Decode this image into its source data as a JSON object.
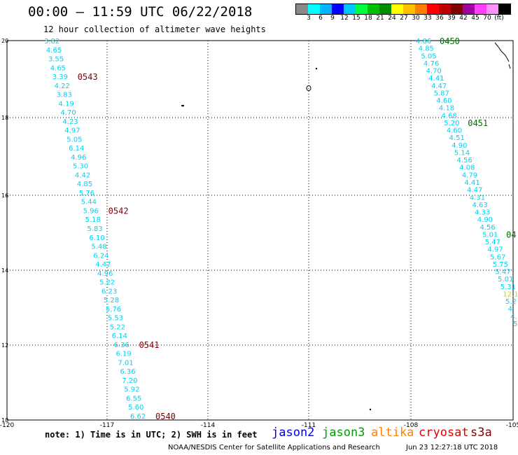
{
  "title": "00:00 – 11:59 UTC 06/22/2018",
  "subtitle": "12 hour collection of altimeter wave heights",
  "colorbar": {
    "unit": "(ft)",
    "colors": [
      "#888888",
      "#00ffff",
      "#00b4ff",
      "#0000ff",
      "#00c8ff",
      "#00ff40",
      "#00c000",
      "#008c00",
      "#ffff00",
      "#ffc000",
      "#ff8000",
      "#ff0000",
      "#c00000",
      "#800000",
      "#a000a0",
      "#ff40ff",
      "#ff90ff",
      "#000000"
    ],
    "labels": [
      "3",
      "6",
      "9",
      "12",
      "15",
      "18",
      "21",
      "24",
      "27",
      "30",
      "33",
      "36",
      "39",
      "42",
      "45",
      "70"
    ]
  },
  "axes": {
    "x_ticks": [
      "-120",
      "-117",
      "-114",
      "-111",
      "-108",
      "-105"
    ],
    "y_ticks": [
      "20",
      "18",
      "16",
      "14",
      "12",
      "10"
    ]
  },
  "track_west": {
    "color": "#00d0f0",
    "values": [
      "3.82",
      "4.65",
      "3.55",
      "4.65",
      "3.39",
      "4.22",
      "3.83",
      "4.19",
      "4.70",
      "4.23",
      "4.97",
      "5.05",
      "6.14",
      "4.96",
      "5.30",
      "4.42",
      "4.85",
      "5.76",
      "5.44",
      "5.96",
      "5.18",
      "5.83",
      "6.10",
      "5.48",
      "6.24",
      "4.47",
      "4.96",
      "5.22",
      "6.23",
      "5.28",
      "5.76",
      "5.53",
      "5.22",
      "6.14",
      "6.36",
      "6.19",
      "7.01",
      "6.36",
      "7.20",
      "5.92",
      "6.55",
      "5.60",
      "6.62"
    ],
    "time_labels": [
      {
        "text": "0543",
        "after_index": 4
      },
      {
        "text": "0542",
        "after_index": 19
      },
      {
        "text": "0541",
        "after_index": 34
      },
      {
        "text": "0540",
        "after_index": 42
      }
    ],
    "label_color": "#800000"
  },
  "track_east": {
    "color": "#00d0f0",
    "values": [
      "4.86",
      "4.85",
      "5.05",
      "4.76",
      "4.70",
      "4.41",
      "4.47",
      "5.87",
      "4.60",
      "4.18",
      "4.68",
      "5.20",
      "4.60",
      "4.51",
      "4.90",
      "5.14",
      "4.56",
      "4.08",
      "4.79",
      "4.41",
      "4.47",
      "4.31",
      "4.63",
      "4.33",
      "4.90",
      "4.56",
      "5.01",
      "5.47",
      "4.97",
      "5.67",
      "5.75",
      "5.47",
      "5.01",
      "5.31",
      "12.1",
      "5.2",
      "4.",
      "4.",
      "5."
    ],
    "highlight_index": 34,
    "highlight_color": "#b0e000",
    "time_labels": [
      {
        "text": "0450",
        "after_index": 0
      },
      {
        "text": "0451",
        "after_index": 11
      },
      {
        "text": "04",
        "after_index": 26
      }
    ],
    "label_color": "#007000"
  },
  "note": "note: 1) Time is in UTC; 2) SWH is in feet",
  "satellites": [
    {
      "name": "jason2",
      "color": "#0000e0"
    },
    {
      "name": "jason3",
      "color": "#00a000"
    },
    {
      "name": "altika",
      "color": "#ff8000"
    },
    {
      "name": "cryosat",
      "color": "#e00000"
    },
    {
      "name": "s3a",
      "color": "#800000"
    }
  ],
  "credit": "NOAA/NESDIS Center for Satellite Applications and Research",
  "timestamp": "Jun 23 12:27:18 UTC 2018"
}
